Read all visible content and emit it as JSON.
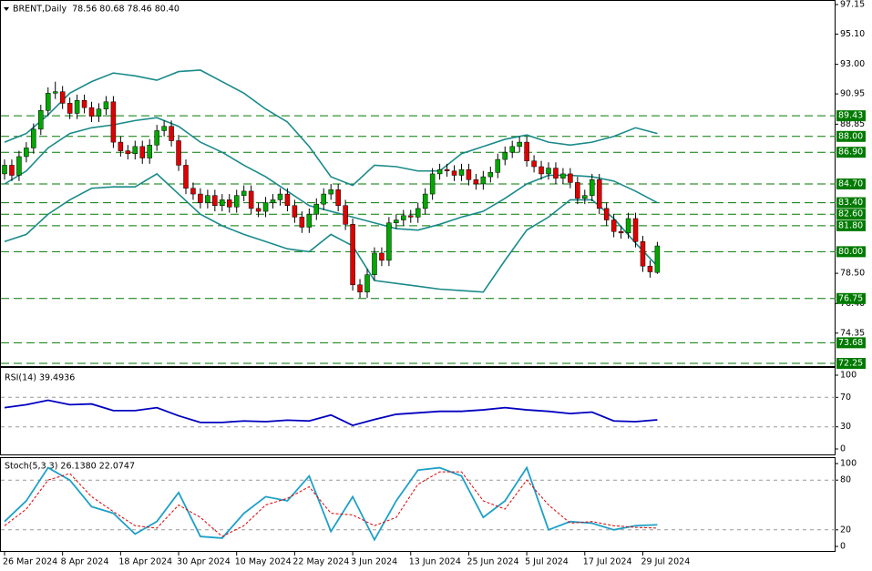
{
  "chart_data": [
    {
      "type": "candlestick",
      "title": "BRENT,Daily",
      "subtitle": "78.56 80.68 78.46 80.40",
      "categories": [
        "26 Mar 2024",
        null,
        null,
        null,
        null,
        null,
        null,
        null,
        "8 Apr 2024",
        null,
        null,
        null,
        null,
        null,
        null,
        null,
        "18 Apr 2024",
        null,
        null,
        null,
        null,
        null,
        null,
        null,
        "30 Apr 2024",
        null,
        null,
        null,
        null,
        null,
        null,
        null,
        "10 May 2024",
        null,
        null,
        null,
        null,
        null,
        null,
        null,
        "22 May 2024",
        null,
        null,
        null,
        null,
        null,
        null,
        null,
        "3 Jun 2024",
        null,
        null,
        null,
        null,
        null,
        null,
        null,
        "13 Jun 2024",
        null,
        null,
        null,
        null,
        null,
        null,
        null,
        "25 Jun 2024",
        null,
        null,
        null,
        null,
        null,
        null,
        null,
        "5 Jul 2024",
        null,
        null,
        null,
        null,
        null,
        null,
        null,
        "17 Jul 2024",
        null,
        null,
        null,
        null,
        null,
        null,
        null,
        "29 Jul 2024",
        null,
        null
      ],
      "open": [
        85.4,
        86.0,
        85.3,
        86.6,
        87.2,
        88.5,
        89.8,
        91.0,
        91.1,
        90.3,
        89.6,
        90.5,
        90.0,
        89.4,
        89.9,
        90.4,
        87.6,
        87.0,
        86.8,
        87.3,
        86.5,
        87.4,
        88.4,
        88.7,
        87.7,
        86.0,
        84.4,
        84.0,
        83.4,
        83.9,
        83.2,
        83.6,
        83.1,
        83.9,
        84.2,
        83.0,
        82.8,
        83.4,
        83.6,
        84.0,
        83.2,
        82.4,
        81.7,
        82.6,
        83.3,
        84.0,
        84.3,
        83.2,
        81.9,
        77.7,
        77.2,
        78.4,
        79.9,
        79.4,
        82.0,
        82.2,
        82.5,
        82.4,
        83.0,
        84.0,
        85.4,
        85.7,
        85.6,
        85.3,
        85.7,
        85.0,
        84.7,
        85.2,
        85.5,
        86.4,
        86.9,
        87.3,
        87.6,
        86.3,
        85.9,
        85.4,
        85.8,
        85.1,
        85.4,
        84.8,
        83.7,
        83.9,
        85.0,
        83.0,
        82.2,
        81.4,
        81.3,
        82.3,
        80.7,
        79.0,
        78.56
      ],
      "high": [
        86.4,
        86.4,
        87.0,
        87.6,
        88.9,
        90.2,
        91.4,
        91.8,
        91.5,
        90.7,
        90.9,
        90.9,
        90.4,
        90.3,
        90.8,
        90.8,
        88.0,
        87.4,
        87.7,
        87.7,
        87.8,
        88.8,
        89.1,
        89.1,
        88.1,
        86.4,
        84.8,
        84.4,
        84.3,
        84.3,
        84.0,
        84.0,
        84.3,
        84.6,
        84.6,
        83.4,
        83.8,
        84.0,
        84.4,
        84.4,
        83.6,
        82.8,
        83.0,
        83.7,
        84.4,
        84.7,
        84.7,
        83.6,
        82.3,
        78.1,
        78.8,
        80.3,
        80.3,
        82.4,
        82.6,
        82.9,
        82.9,
        83.4,
        84.4,
        85.8,
        86.1,
        86.1,
        86.0,
        86.1,
        86.1,
        85.4,
        85.6,
        85.9,
        86.8,
        87.3,
        87.7,
        88.0,
        88.0,
        86.7,
        86.3,
        86.2,
        86.2,
        85.8,
        85.8,
        85.2,
        84.3,
        85.4,
        85.4,
        83.4,
        82.6,
        81.8,
        82.7,
        82.7,
        81.1,
        79.4,
        80.68
      ],
      "low": [
        85.0,
        84.9,
        84.9,
        86.2,
        86.8,
        88.1,
        89.4,
        90.6,
        89.9,
        89.2,
        89.2,
        89.6,
        89.0,
        89.0,
        89.5,
        87.2,
        86.6,
        86.4,
        86.4,
        86.1,
        86.1,
        87.0,
        88.0,
        87.3,
        85.6,
        84.0,
        83.6,
        83.0,
        83.0,
        82.8,
        82.8,
        82.7,
        82.7,
        83.5,
        82.6,
        82.4,
        82.4,
        83.0,
        83.2,
        82.8,
        82.0,
        81.3,
        81.3,
        82.2,
        82.9,
        83.6,
        82.8,
        81.5,
        77.3,
        76.8,
        76.8,
        78.0,
        79.0,
        79.0,
        81.6,
        81.8,
        82.0,
        82.0,
        82.6,
        83.6,
        85.0,
        85.2,
        84.9,
        84.9,
        84.6,
        84.3,
        84.3,
        84.8,
        85.1,
        86.0,
        86.5,
        86.9,
        85.9,
        85.5,
        85.0,
        85.0,
        84.7,
        84.7,
        84.4,
        83.3,
        83.3,
        83.5,
        82.6,
        81.8,
        81.0,
        80.9,
        80.9,
        80.3,
        78.6,
        78.2,
        78.46
      ],
      "close": [
        86.0,
        85.3,
        86.6,
        87.2,
        88.5,
        89.8,
        91.0,
        91.1,
        90.3,
        89.6,
        90.5,
        90.0,
        89.4,
        89.9,
        90.4,
        87.6,
        87.0,
        86.8,
        87.3,
        86.5,
        87.4,
        88.4,
        88.7,
        87.7,
        86.0,
        84.4,
        84.0,
        83.4,
        83.9,
        83.2,
        83.6,
        83.1,
        83.9,
        84.2,
        83.0,
        82.8,
        83.4,
        83.6,
        84.0,
        83.2,
        82.4,
        81.7,
        82.6,
        83.3,
        84.0,
        84.3,
        83.2,
        81.9,
        77.7,
        77.2,
        78.4,
        79.9,
        79.4,
        82.0,
        82.2,
        82.5,
        82.4,
        83.0,
        84.0,
        85.4,
        85.7,
        85.6,
        85.3,
        85.7,
        85.0,
        84.7,
        85.2,
        85.5,
        86.4,
        86.9,
        87.3,
        87.6,
        86.3,
        85.9,
        85.4,
        85.8,
        85.1,
        85.4,
        84.8,
        83.7,
        83.9,
        85.0,
        83.0,
        82.2,
        81.4,
        81.3,
        82.3,
        80.7,
        79.0,
        78.6,
        80.4
      ],
      "up_color": "#00a800",
      "down_color": "#e00000",
      "ylim": [
        72.25,
        97.15
      ],
      "yticks": [
        97.15,
        {
          "value": 95.1,
          "label": "95.10"
        },
        {
          "value": 93,
          "label": "93.00"
        },
        90.95,
        88.85,
        {
          "value": 78.5,
          "label": "78.50"
        },
        {
          "value": 76.4,
          "label": "76.40"
        },
        74.35
      ],
      "levels": [
        89.43,
        {
          "value": 88,
          "label": "88.00"
        },
        {
          "value": 86.9,
          "label": "86.90"
        },
        {
          "value": 84.7,
          "label": "84.70"
        },
        {
          "value": 83.4,
          "label": "83.40"
        },
        {
          "value": 82.6,
          "label": "82.60"
        },
        {
          "value": 81.8,
          "label": "81.80"
        },
        {
          "value": 80,
          "label": "80.00"
        },
        76.75,
        73.68,
        72.25
      ],
      "level_color": "#007a00",
      "series": [
        {
          "color": "#1a8a8a",
          "x": [
            0,
            3,
            6,
            9,
            12,
            15,
            18,
            21,
            24,
            27,
            30,
            33,
            36,
            39,
            42,
            45,
            48,
            51,
            54,
            57,
            60,
            63,
            66,
            69,
            72,
            75,
            78,
            81,
            84,
            87,
            90
          ],
          "values": [
            87.6,
            88.2,
            89.5,
            91.0,
            91.8,
            92.4,
            92.2,
            91.9,
            92.5,
            92.6,
            91.8,
            91.0,
            89.9,
            89.0,
            87.3,
            85.2,
            84.6,
            86.0,
            85.9,
            85.6,
            85.6,
            86.8,
            87.3,
            87.8,
            88.1,
            87.6,
            87.4,
            87.6,
            88.0,
            88.6,
            88.2
          ]
        },
        {
          "color": "#1a8a8a",
          "x": [
            0,
            3,
            6,
            9,
            12,
            15,
            18,
            21,
            24,
            27,
            30,
            33,
            36,
            39,
            42,
            45,
            48,
            51,
            54,
            57,
            60,
            63,
            66,
            69,
            72,
            75,
            78,
            81,
            84,
            87,
            90
          ],
          "values": [
            84.7,
            85.6,
            87.2,
            88.2,
            88.6,
            88.8,
            89.1,
            89.3,
            88.7,
            87.6,
            86.9,
            86.0,
            85.2,
            84.2,
            83.2,
            82.8,
            82.4,
            82.0,
            81.6,
            81.5,
            81.9,
            82.4,
            82.8,
            83.7,
            84.7,
            85.3,
            85.3,
            85.2,
            84.9,
            84.2,
            83.4
          ]
        },
        {
          "color": "#1a8a8a",
          "x": [
            0,
            3,
            6,
            9,
            12,
            15,
            18,
            21,
            24,
            27,
            30,
            33,
            36,
            39,
            42,
            45,
            48,
            51,
            54,
            57,
            60,
            63,
            66,
            69,
            72,
            75,
            78,
            81,
            84,
            87,
            90
          ],
          "values": [
            80.7,
            81.2,
            82.6,
            83.6,
            84.4,
            84.5,
            84.5,
            85.4,
            84.0,
            82.6,
            81.8,
            81.2,
            80.7,
            80.2,
            80.0,
            81.2,
            80.4,
            78.0,
            77.8,
            77.6,
            77.4,
            77.3,
            77.2,
            79.4,
            81.5,
            82.4,
            83.6,
            83.6,
            82.3,
            80.6,
            79.0
          ]
        }
      ]
    },
    {
      "type": "line",
      "title": "RSI(14) 39.4936",
      "ylim": [
        0,
        100
      ],
      "yticks": [
        100,
        70,
        30,
        0
      ],
      "levels": [
        70,
        30
      ],
      "series": [
        {
          "color": "#0000c0",
          "x": [
            0,
            3,
            6,
            9,
            12,
            15,
            18,
            21,
            24,
            27,
            30,
            33,
            36,
            39,
            42,
            45,
            48,
            51,
            54,
            57,
            60,
            63,
            66,
            69,
            72,
            75,
            78,
            81,
            84,
            87,
            90
          ],
          "values": [
            56,
            60,
            66,
            60,
            61,
            52,
            52,
            56,
            45,
            36,
            36,
            38,
            37,
            39,
            38,
            46,
            32,
            40,
            47,
            49,
            51,
            51,
            53,
            56,
            53,
            51,
            48,
            50,
            38,
            37,
            39.49
          ]
        }
      ]
    },
    {
      "type": "line",
      "title": "Stoch(5,3,3) 26.1380 22.0747",
      "ylim": [
        0,
        100
      ],
      "yticks": [
        100,
        80,
        20,
        0
      ],
      "levels": [
        80,
        20
      ],
      "series": [
        {
          "color": "#1ea0c8",
          "x": [
            0,
            3,
            6,
            9,
            12,
            15,
            18,
            21,
            24,
            27,
            30,
            33,
            36,
            39,
            42,
            45,
            48,
            51,
            54,
            57,
            60,
            63,
            66,
            69,
            72,
            75,
            78,
            81,
            84,
            87,
            90
          ],
          "values": [
            30,
            55,
            95,
            80,
            48,
            40,
            15,
            30,
            65,
            12,
            10,
            40,
            60,
            55,
            85,
            18,
            60,
            8,
            55,
            92,
            95,
            85,
            35,
            55,
            95,
            20,
            30,
            28,
            20,
            25,
            26.138
          ]
        },
        {
          "color": "#e00000",
          "dash": true,
          "x": [
            0,
            3,
            6,
            9,
            12,
            15,
            18,
            21,
            24,
            27,
            30,
            33,
            36,
            39,
            42,
            45,
            48,
            51,
            54,
            57,
            60,
            63,
            66,
            69,
            72,
            75,
            78,
            81,
            84,
            87,
            90
          ],
          "values": [
            25,
            45,
            80,
            88,
            60,
            42,
            25,
            22,
            50,
            35,
            12,
            25,
            50,
            58,
            72,
            40,
            38,
            25,
            35,
            75,
            90,
            90,
            55,
            45,
            80,
            50,
            28,
            30,
            25,
            23,
            22.0747
          ]
        }
      ]
    }
  ]
}
